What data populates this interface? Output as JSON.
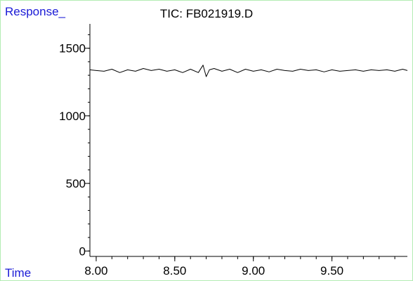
{
  "chart_data": {
    "type": "line",
    "title": "TIC: FB021919.D",
    "ylabel": "Response_",
    "xlabel": "Time",
    "xlim": [
      7.96,
      9.98
    ],
    "ylim": [
      -40,
      1680
    ],
    "x_ticks": [
      {
        "value": 8.0,
        "label": "8.00"
      },
      {
        "value": 8.5,
        "label": "8.50"
      },
      {
        "value": 9.0,
        "label": "9.00"
      },
      {
        "value": 9.5,
        "label": "9.50"
      }
    ],
    "y_ticks": [
      {
        "value": 0,
        "label": "0"
      },
      {
        "value": 500,
        "label": "500"
      },
      {
        "value": 1000,
        "label": "1000"
      },
      {
        "value": 1500,
        "label": "1500"
      }
    ],
    "x_minor_step": 0.1,
    "y_minor_step": 100,
    "series": [
      {
        "color": "#000000",
        "x": [
          7.96,
          8.0,
          8.05,
          8.1,
          8.15,
          8.2,
          8.25,
          8.3,
          8.35,
          8.4,
          8.45,
          8.5,
          8.55,
          8.6,
          8.65,
          8.68,
          8.7,
          8.72,
          8.75,
          8.8,
          8.85,
          8.9,
          8.95,
          9.0,
          9.05,
          9.1,
          9.15,
          9.2,
          9.25,
          9.3,
          9.35,
          9.4,
          9.45,
          9.5,
          9.55,
          9.6,
          9.65,
          9.7,
          9.75,
          9.8,
          9.85,
          9.9,
          9.95,
          9.98
        ],
        "y": [
          1340,
          1335,
          1330,
          1345,
          1320,
          1340,
          1330,
          1350,
          1335,
          1345,
          1330,
          1340,
          1320,
          1345,
          1320,
          1375,
          1290,
          1340,
          1350,
          1330,
          1345,
          1320,
          1345,
          1330,
          1340,
          1325,
          1345,
          1335,
          1330,
          1345,
          1335,
          1340,
          1325,
          1340,
          1330,
          1335,
          1340,
          1330,
          1340,
          1335,
          1340,
          1330,
          1345,
          1335
        ]
      }
    ]
  }
}
